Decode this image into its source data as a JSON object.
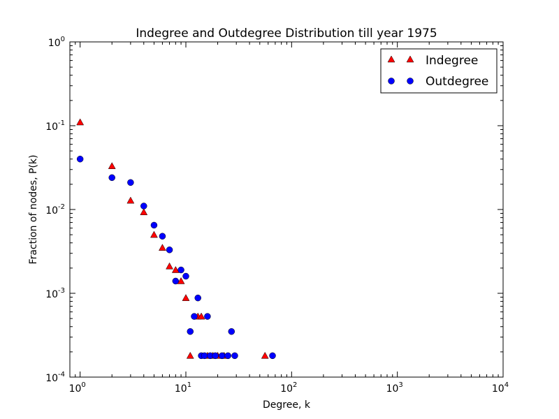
{
  "chart_data": {
    "type": "scatter",
    "title": "Indegree and Outdegree Distribution till year 1975",
    "xlabel": "Degree, k",
    "ylabel": "Fraction of nodes, P(k)",
    "xscale": "log",
    "yscale": "log",
    "xlim": [
      0.8,
      10000
    ],
    "ylim": [
      0.0001,
      1
    ],
    "x_ticks": [
      {
        "base": "10",
        "exp": "0"
      },
      {
        "base": "10",
        "exp": "1"
      },
      {
        "base": "10",
        "exp": "2"
      },
      {
        "base": "10",
        "exp": "3"
      },
      {
        "base": "10",
        "exp": "4"
      }
    ],
    "y_ticks": [
      {
        "base": "10",
        "exp": "-4"
      },
      {
        "base": "10",
        "exp": "-3"
      },
      {
        "base": "10",
        "exp": "-2"
      },
      {
        "base": "10",
        "exp": "-1"
      },
      {
        "base": "10",
        "exp": "0"
      }
    ],
    "grid": false,
    "legend_position": "top-right",
    "series": [
      {
        "name": "Indegree",
        "marker": "triangle",
        "color": "#ff0000",
        "points": [
          [
            1,
            0.11
          ],
          [
            2,
            0.033
          ],
          [
            3,
            0.0128
          ],
          [
            4,
            0.0093
          ],
          [
            5,
            0.005
          ],
          [
            6,
            0.0035
          ],
          [
            7,
            0.0021
          ],
          [
            8,
            0.0019
          ],
          [
            9,
            0.0014
          ],
          [
            10,
            0.00088
          ],
          [
            11,
            0.00018
          ],
          [
            13,
            0.00053
          ],
          [
            14,
            0.00053
          ],
          [
            16,
            0.00018
          ],
          [
            18,
            0.00018
          ],
          [
            20,
            0.00018
          ],
          [
            23,
            0.00018
          ],
          [
            56,
            0.00018
          ]
        ]
      },
      {
        "name": "Outdegree",
        "marker": "circle",
        "color": "#0000ff",
        "points": [
          [
            1,
            0.04
          ],
          [
            2,
            0.024
          ],
          [
            3,
            0.021
          ],
          [
            4,
            0.011
          ],
          [
            5,
            0.0065
          ],
          [
            6,
            0.0048
          ],
          [
            7,
            0.0033
          ],
          [
            8,
            0.0014
          ],
          [
            9,
            0.0019
          ],
          [
            10,
            0.0016
          ],
          [
            11,
            0.00035
          ],
          [
            12,
            0.00053
          ],
          [
            13,
            0.00088
          ],
          [
            14,
            0.00018
          ],
          [
            15,
            0.00018
          ],
          [
            16,
            0.00053
          ],
          [
            17,
            0.00018
          ],
          [
            19,
            0.00018
          ],
          [
            22,
            0.00018
          ],
          [
            25,
            0.00018
          ],
          [
            27,
            0.00035
          ],
          [
            29,
            0.00018
          ],
          [
            66,
            0.00018
          ]
        ]
      }
    ]
  }
}
